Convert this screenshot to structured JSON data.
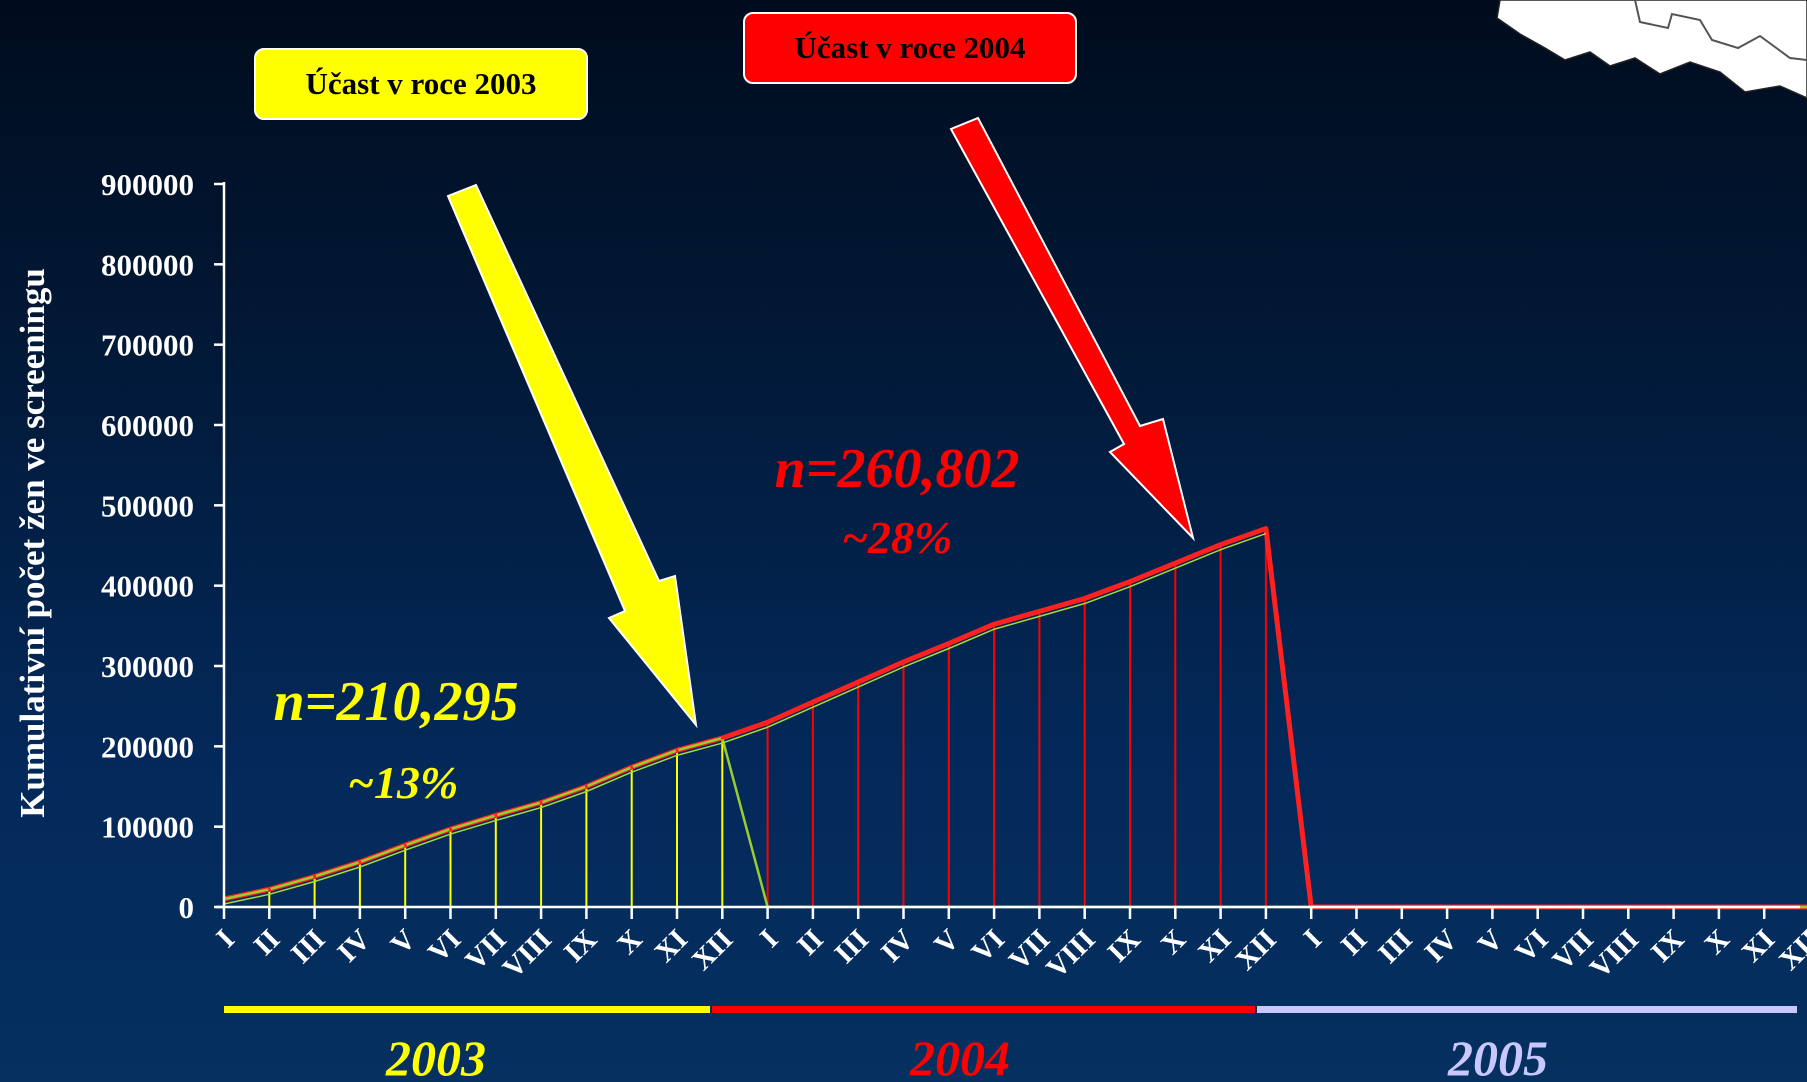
{
  "callouts": {
    "participation_2003": "Účast v roce 2003",
    "participation_2004": "Účast v roce 2004"
  },
  "colors": {
    "year_2003": "#ffff00",
    "year_2004": "#ff0000",
    "year_2005": "#c8c8ff",
    "line_2003": "#9acd32",
    "line_2004": "#ff2020",
    "axis": "#ffffff"
  },
  "chart_data": {
    "type": "area",
    "ylabel": "Kumulativní počet žen ve screeningu",
    "xlabel": "",
    "ylim": [
      0,
      900000
    ],
    "yticks": [
      "0",
      "100000",
      "200000",
      "300000",
      "400000",
      "500000",
      "600000",
      "700000",
      "800000",
      "900000"
    ],
    "grid": false,
    "categories": [
      "I",
      "II",
      "III",
      "IV",
      "V",
      "VI",
      "VII",
      "VIII",
      "IX",
      "X",
      "XI",
      "XII",
      "I",
      "II",
      "III",
      "IV",
      "V",
      "VI",
      "VII",
      "VIII",
      "IX",
      "X",
      "XI",
      "XII",
      "I",
      "II",
      "III",
      "IV",
      "V",
      "VI",
      "VII",
      "VIII",
      "IX",
      "X",
      "XI",
      "XII"
    ],
    "years": [
      "2003",
      "2004",
      "2005"
    ],
    "series": [
      {
        "values": [
          10000,
          22000,
          38000,
          56000,
          77000,
          97000,
          114000,
          130000,
          150000,
          174000,
          195000,
          210295,
          0,
          0,
          0,
          0,
          0,
          0,
          0,
          0,
          0,
          0,
          0,
          0,
          0,
          0,
          0,
          0,
          0,
          0,
          0,
          0,
          0,
          0,
          0,
          0
        ]
      },
      {
        "values": [
          10000,
          22000,
          38000,
          56000,
          77000,
          97000,
          114000,
          130000,
          150000,
          174000,
          195000,
          210295,
          230000,
          255000,
          280000,
          305000,
          328000,
          352000,
          368000,
          384000,
          405000,
          428000,
          451000,
          471097,
          0,
          0,
          0,
          0,
          0,
          0,
          0,
          0,
          0,
          0,
          0,
          0
        ]
      }
    ],
    "annotations": {
      "n_2003": "n=210,295",
      "pct_2003": "~13%",
      "n_2004": "n=260,802",
      "pct_2004": "~28%"
    }
  }
}
